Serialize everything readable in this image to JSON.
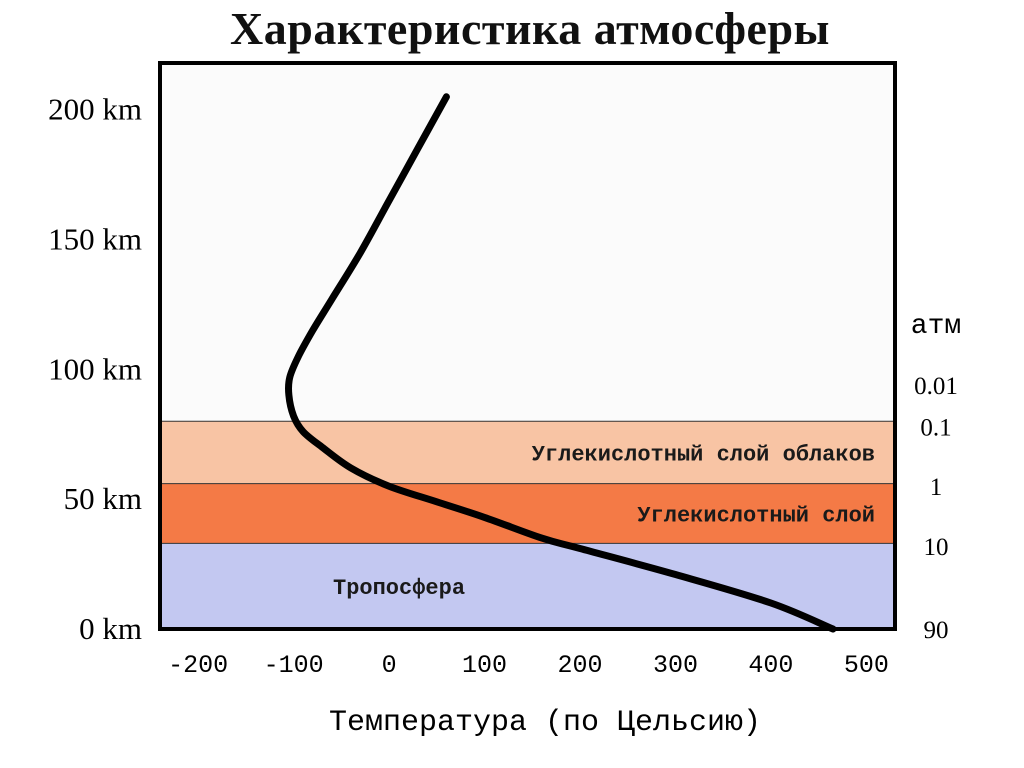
{
  "chart_data": {
    "type": "line",
    "title": "Характеристика атмосферы",
    "xlabel": "Температура (по Цельсию)",
    "ylabel": "",
    "xlim": [
      -240,
      530
    ],
    "ylim": [
      0,
      218
    ],
    "x_ticks": [
      "-200",
      "-100",
      "0",
      "100",
      "200",
      "300",
      "400",
      "500"
    ],
    "x_tick_values": [
      -200,
      -100,
      0,
      100,
      200,
      300,
      400,
      500
    ],
    "y_ticks": [
      "200 km",
      "150 km",
      "100 km",
      "50 km",
      "0 km"
    ],
    "y_tick_values": [
      200,
      150,
      100,
      50,
      0
    ],
    "pressure_unit": "атм",
    "pressure_ticks": [
      {
        "label": "0.01",
        "altitude": 94
      },
      {
        "label": "0.1",
        "altitude": 78
      },
      {
        "label": "1",
        "altitude": 55
      },
      {
        "label": "10",
        "altitude": 32
      },
      {
        "label": "90",
        "altitude": 0
      }
    ],
    "bands": [
      {
        "label": "Углекислотный слой облаков",
        "from": 80,
        "to": 56,
        "color": "#f8c4a4"
      },
      {
        "label": "Углекислотный слой",
        "from": 56,
        "to": 33,
        "color": "#f47a46"
      },
      {
        "label": "Тропосфера",
        "from": 33,
        "to": 0,
        "color": "#c3c8f1"
      }
    ],
    "plot_background": "#fbfbfb",
    "series": [
      {
        "color": "#000000",
        "x": [
          465,
          400,
          300,
          200,
          160,
          100,
          50,
          0,
          -40,
          -70,
          -90,
          -100,
          -105,
          -104,
          -95,
          -80,
          -60,
          -30,
          0,
          30,
          60
        ],
        "y": [
          0,
          10,
          21,
          31,
          35,
          43,
          49,
          55,
          62,
          70,
          76,
          82,
          90,
          97,
          105,
          115,
          127,
          145,
          165,
          185,
          205
        ]
      }
    ]
  }
}
